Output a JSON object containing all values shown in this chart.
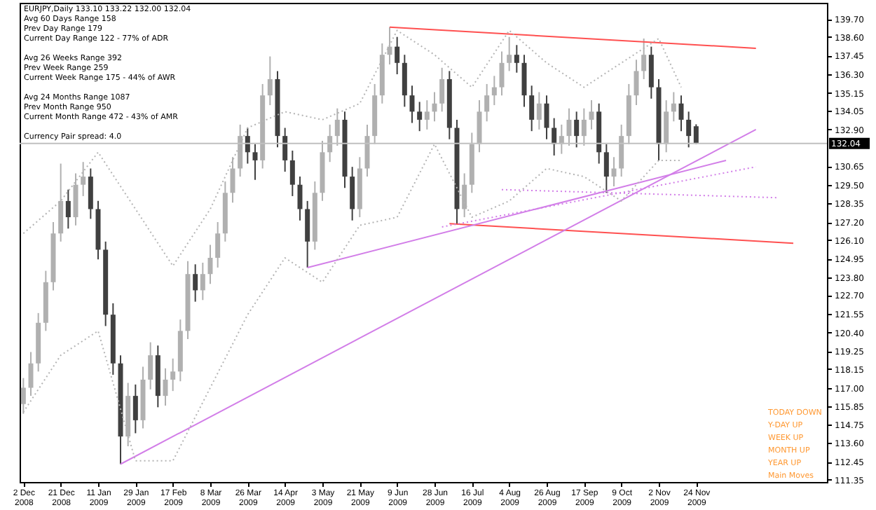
{
  "chart_data": {
    "type": "candlestick",
    "title": "EURJPY,Daily  133.10 133.22 132.00 132.04",
    "colors": [
      "#b0b0b0",
      "#b0b0b0",
      "#b0b0b0",
      "#b0b0b0",
      "#b0b0b0",
      "#b0b0b0",
      "#404040",
      "#b0b0b0",
      "#b0b0b0",
      "#404040",
      "#404040",
      "#404040",
      "#404040",
      "#404040",
      "#b0b0b0",
      "#404040",
      "#b0b0b0",
      "#b0b0b0",
      "#404040",
      "#b0b0b0",
      "#b0b0b0",
      "#b0b0b0",
      "#b0b0b0",
      "#404040",
      "#b0b0b0",
      "#b0b0b0",
      "#b0b0b0",
      "#b0b0b0",
      "#b0b0b0",
      "#b0b0b0",
      "#404040",
      "#404040",
      "#b0b0b0",
      "#b0b0b0",
      "#404040",
      "#404040",
      "#404040",
      "#404040",
      "#404040",
      "#b0b0b0",
      "#b0b0b0",
      "#b0b0b0",
      "#b0b0b0",
      "#404040",
      "#404040",
      "#b0b0b0",
      "#b0b0b0",
      "#b0b0b0",
      "#b0b0b0",
      "#b0b0b0",
      "#404040",
      "#404040",
      "#404040",
      "#404040",
      "#b0b0b0",
      "#b0b0b0",
      "#b0b0b0",
      "#404040",
      "#404040",
      "#b0b0b0",
      "#b0b0b0",
      "#b0b0b0",
      "#b0b0b0",
      "#b0b0b0",
      "#b0b0b0",
      "#b0b0b0",
      "#404040",
      "#404040",
      "#404040",
      "#b0b0b0",
      "#404040",
      "#404040",
      "#b0b0b0",
      "#b0b0b0",
      "#404040",
      "#b0b0b0",
      "#b0b0b0",
      "#404040",
      "#404040",
      "#b0b0b0",
      "#b0b0b0",
      "#b0b0b0",
      "#b0b0b0",
      "#b0b0b0",
      "#404040",
      "#404040",
      "#b0b0b0",
      "#b0b0b0",
      "#404040",
      "#404040",
      "#404040",
      null,
      null,
      null,
      null,
      null,
      null,
      null,
      null,
      null,
      null,
      null,
      null,
      null,
      null,
      null,
      null,
      null
    ],
    "categories": [
      "2 Dec 2008",
      null,
      null,
      null,
      null,
      "21 Dec 2008",
      null,
      null,
      null,
      null,
      "11 Jan 2009",
      null,
      null,
      null,
      null,
      "29 Jan 2009",
      null,
      null,
      null,
      null,
      "17 Feb 2009",
      null,
      null,
      null,
      null,
      "8 Mar 2009",
      null,
      null,
      null,
      null,
      "26 Mar 2009",
      null,
      null,
      null,
      null,
      "14 Apr 2009",
      null,
      null,
      null,
      null,
      "3 May 2009",
      null,
      null,
      null,
      null,
      "21 May 2009",
      null,
      null,
      null,
      null,
      "9 Jun 2009",
      null,
      null,
      null,
      null,
      "28 Jun 2009",
      null,
      null,
      null,
      null,
      "16 Jul 2009",
      null,
      null,
      null,
      null,
      "4 Aug 2009",
      null,
      null,
      null,
      null,
      "26 Aug 2009",
      null,
      null,
      null,
      null,
      "17 Sep 2009",
      null,
      null,
      null,
      null,
      "9 Oct 2009",
      null,
      null,
      null,
      null,
      "2 Nov 2009",
      null,
      null,
      null,
      null,
      "24 Nov 2009",
      null,
      null,
      null,
      null,
      null,
      null,
      null,
      null,
      null,
      null,
      null,
      null,
      null,
      null,
      null,
      null,
      null
    ],
    "ohlc": [
      [
        116.0,
        117.6,
        115.4,
        117.0
      ],
      [
        117.0,
        119.2,
        116.5,
        118.5
      ],
      [
        118.5,
        121.6,
        118.0,
        121.0
      ],
      [
        121.0,
        124.2,
        120.5,
        123.5
      ],
      [
        123.5,
        127.2,
        123.0,
        126.5
      ],
      [
        126.5,
        130.8,
        126.0,
        128.5
      ],
      [
        128.5,
        129.2,
        126.8,
        127.5
      ],
      [
        127.5,
        130.2,
        127.0,
        129.5
      ],
      [
        129.5,
        130.9,
        128.8,
        130.0
      ],
      [
        130.0,
        130.5,
        127.4,
        128.0
      ],
      [
        128.0,
        128.5,
        124.9,
        125.5
      ],
      [
        125.5,
        126.0,
        120.8,
        121.5
      ],
      [
        121.5,
        122.2,
        117.8,
        118.5
      ],
      [
        118.5,
        119.0,
        112.3,
        114.0
      ],
      [
        114.0,
        117.3,
        113.4,
        116.5
      ],
      [
        116.5,
        117.2,
        114.2,
        115.0
      ],
      [
        115.0,
        118.3,
        114.5,
        117.5
      ],
      [
        117.5,
        119.8,
        116.9,
        119.0
      ],
      [
        119.0,
        119.6,
        115.8,
        116.5
      ],
      [
        116.5,
        118.2,
        115.9,
        117.5
      ],
      [
        117.5,
        118.8,
        116.8,
        118.0
      ],
      [
        118.0,
        121.2,
        117.4,
        120.5
      ],
      [
        120.5,
        124.8,
        120.0,
        124.0
      ],
      [
        124.0,
        124.6,
        122.3,
        123.0
      ],
      [
        123.0,
        124.7,
        122.4,
        124.0
      ],
      [
        124.0,
        125.8,
        123.4,
        125.0
      ],
      [
        125.0,
        127.2,
        124.4,
        126.5
      ],
      [
        126.5,
        129.7,
        126.0,
        129.0
      ],
      [
        129.0,
        131.2,
        128.4,
        130.5
      ],
      [
        130.5,
        133.2,
        130.0,
        132.5
      ],
      [
        132.5,
        133.0,
        130.8,
        131.5
      ],
      [
        131.5,
        132.0,
        129.8,
        131.0
      ],
      [
        131.0,
        135.7,
        130.5,
        135.0
      ],
      [
        135.0,
        137.4,
        134.4,
        136.0
      ],
      [
        136.0,
        136.5,
        131.8,
        132.5
      ],
      [
        132.5,
        133.0,
        130.3,
        131.0
      ],
      [
        131.0,
        131.6,
        128.8,
        129.5
      ],
      [
        129.5,
        130.0,
        127.3,
        128.0
      ],
      [
        128.0,
        128.5,
        124.4,
        126.0
      ],
      [
        126.0,
        129.7,
        125.5,
        129.0
      ],
      [
        129.0,
        132.2,
        128.5,
        131.5
      ],
      [
        131.5,
        133.2,
        130.9,
        132.5
      ],
      [
        132.5,
        134.2,
        131.9,
        133.5
      ],
      [
        133.5,
        134.0,
        129.3,
        130.0
      ],
      [
        130.0,
        130.6,
        127.3,
        128.0
      ],
      [
        128.0,
        131.2,
        127.5,
        130.5
      ],
      [
        130.5,
        133.2,
        130.0,
        132.5
      ],
      [
        132.5,
        135.7,
        132.0,
        135.0
      ],
      [
        135.0,
        138.2,
        134.5,
        137.5
      ],
      [
        137.5,
        139.2,
        136.9,
        138.0
      ],
      [
        138.0,
        138.6,
        136.3,
        137.0
      ],
      [
        137.0,
        137.5,
        134.3,
        135.0
      ],
      [
        135.0,
        135.6,
        133.3,
        134.0
      ],
      [
        134.0,
        134.6,
        132.8,
        133.5
      ],
      [
        133.5,
        134.7,
        132.9,
        134.0
      ],
      [
        134.0,
        135.2,
        133.4,
        134.5
      ],
      [
        134.5,
        136.7,
        134.0,
        136.0
      ],
      [
        136.0,
        136.5,
        132.3,
        133.0
      ],
      [
        133.0,
        133.5,
        127.1,
        128.0
      ],
      [
        128.0,
        130.2,
        127.5,
        129.5
      ],
      [
        129.5,
        132.7,
        129.0,
        132.0
      ],
      [
        132.0,
        134.7,
        131.5,
        134.0
      ],
      [
        134.0,
        135.7,
        133.4,
        135.0
      ],
      [
        135.0,
        136.2,
        134.4,
        135.5
      ],
      [
        135.5,
        137.7,
        135.0,
        137.0
      ],
      [
        137.0,
        138.6,
        136.5,
        137.5
      ],
      [
        137.5,
        138.1,
        136.4,
        137.0
      ],
      [
        137.0,
        137.5,
        134.3,
        135.0
      ],
      [
        135.0,
        135.6,
        132.8,
        133.5
      ],
      [
        133.5,
        135.2,
        132.9,
        134.5
      ],
      [
        134.5,
        135.0,
        132.3,
        133.0
      ],
      [
        133.0,
        133.6,
        131.3,
        132.0
      ],
      [
        132.0,
        133.2,
        131.4,
        132.5
      ],
      [
        132.5,
        134.2,
        131.9,
        133.5
      ],
      [
        133.5,
        134.0,
        131.8,
        132.5
      ],
      [
        132.5,
        134.2,
        131.9,
        133.5
      ],
      [
        133.5,
        134.7,
        132.9,
        134.0
      ],
      [
        134.0,
        134.5,
        130.8,
        131.5
      ],
      [
        131.5,
        132.0,
        129.0,
        130.0
      ],
      [
        130.0,
        131.2,
        129.4,
        130.5
      ],
      [
        130.5,
        133.2,
        130.0,
        132.5
      ],
      [
        132.5,
        135.7,
        132.0,
        135.0
      ],
      [
        135.0,
        137.2,
        134.4,
        136.5
      ],
      [
        136.5,
        138.5,
        136.0,
        137.5
      ],
      [
        137.5,
        138.0,
        134.8,
        135.5
      ],
      [
        135.5,
        136.0,
        131.0,
        132.0
      ],
      [
        132.0,
        134.7,
        131.5,
        134.0
      ],
      [
        134.0,
        135.2,
        133.4,
        134.5
      ],
      [
        134.5,
        135.0,
        132.8,
        133.5
      ],
      [
        133.5,
        134.0,
        131.8,
        132.5
      ],
      [
        133.1,
        133.22,
        132.0,
        132.04
      ],
      null,
      null,
      null,
      null,
      null,
      null,
      null,
      null,
      null,
      null,
      null,
      null,
      null,
      null,
      null,
      null,
      null
    ],
    "series": [
      {
        "type": "line",
        "color": "#ff5050",
        "line_style": "solid",
        "values": [
          null,
          null,
          null,
          null,
          null,
          null,
          null,
          null,
          null,
          null,
          null,
          null,
          null,
          null,
          null,
          null,
          null,
          null,
          null,
          null,
          null,
          null,
          null,
          null,
          null,
          null,
          null,
          null,
          null,
          null,
          null,
          null,
          null,
          null,
          null,
          null,
          null,
          null,
          null,
          null,
          null,
          null,
          null,
          null,
          null,
          null,
          null,
          null,
          null,
          139.2,
          null,
          null,
          null,
          null,
          null,
          null,
          null,
          null,
          null,
          null,
          null,
          null,
          null,
          null,
          null,
          null,
          null,
          null,
          null,
          null,
          null,
          null,
          null,
          null,
          null,
          null,
          null,
          null,
          null,
          null,
          null,
          null,
          null,
          null,
          null,
          null,
          null,
          null,
          null,
          null,
          null,
          null,
          null,
          null,
          null,
          null,
          null,
          null,
          137.9,
          null,
          null,
          null,
          null,
          null,
          null,
          null,
          null,
          null
        ]
      },
      {
        "type": "line",
        "color": "#ff5050",
        "line_style": "solid",
        "values": [
          null,
          null,
          null,
          null,
          null,
          null,
          null,
          null,
          null,
          null,
          null,
          null,
          null,
          null,
          null,
          null,
          null,
          null,
          null,
          null,
          null,
          null,
          null,
          null,
          null,
          null,
          null,
          null,
          null,
          null,
          null,
          null,
          null,
          null,
          null,
          null,
          null,
          null,
          null,
          null,
          null,
          null,
          null,
          null,
          null,
          null,
          null,
          null,
          null,
          null,
          null,
          null,
          null,
          null,
          null,
          null,
          null,
          127.1,
          null,
          null,
          null,
          null,
          null,
          null,
          null,
          null,
          null,
          null,
          null,
          null,
          null,
          null,
          null,
          null,
          null,
          null,
          null,
          null,
          null,
          null,
          null,
          null,
          null,
          null,
          null,
          null,
          null,
          null,
          null,
          null,
          null,
          null,
          null,
          null,
          null,
          null,
          null,
          null,
          null,
          null,
          null,
          null,
          null,
          125.9,
          null,
          null,
          null,
          null
        ]
      },
      {
        "type": "line",
        "color": "#d27ee8",
        "line_style": "solid",
        "values": [
          null,
          null,
          null,
          null,
          null,
          null,
          null,
          null,
          null,
          null,
          null,
          null,
          null,
          112.3,
          null,
          null,
          null,
          null,
          null,
          null,
          null,
          null,
          null,
          null,
          null,
          null,
          null,
          null,
          null,
          null,
          null,
          null,
          null,
          null,
          null,
          null,
          null,
          null,
          null,
          null,
          null,
          null,
          null,
          null,
          null,
          null,
          null,
          null,
          null,
          null,
          null,
          null,
          null,
          null,
          null,
          null,
          null,
          null,
          null,
          null,
          null,
          null,
          null,
          null,
          null,
          null,
          null,
          null,
          null,
          null,
          null,
          null,
          null,
          null,
          null,
          null,
          null,
          null,
          null,
          null,
          null,
          null,
          null,
          null,
          null,
          null,
          null,
          null,
          null,
          null,
          null,
          null,
          null,
          null,
          null,
          null,
          null,
          null,
          132.9,
          null,
          null,
          null,
          null,
          null,
          null,
          null,
          null,
          null
        ]
      },
      {
        "type": "line",
        "color": "#d27ee8",
        "line_style": "solid",
        "values": [
          null,
          null,
          null,
          null,
          null,
          null,
          null,
          null,
          null,
          null,
          null,
          null,
          null,
          null,
          null,
          null,
          null,
          null,
          null,
          null,
          null,
          null,
          null,
          null,
          null,
          null,
          null,
          null,
          null,
          null,
          null,
          null,
          null,
          null,
          null,
          null,
          null,
          null,
          124.4,
          null,
          null,
          null,
          null,
          null,
          null,
          null,
          null,
          null,
          null,
          null,
          null,
          null,
          null,
          null,
          null,
          null,
          null,
          null,
          null,
          null,
          null,
          null,
          null,
          null,
          null,
          null,
          null,
          null,
          null,
          null,
          null,
          null,
          null,
          null,
          null,
          null,
          null,
          null,
          null,
          null,
          null,
          null,
          null,
          null,
          null,
          null,
          null,
          null,
          null,
          null,
          null,
          null,
          null,
          null,
          131.0,
          null,
          null,
          null,
          null,
          null,
          null,
          null,
          null,
          null,
          null,
          null,
          null,
          null
        ]
      },
      {
        "type": "line",
        "color": "#d27ee8",
        "line_style": "dotted",
        "values": [
          null,
          null,
          null,
          null,
          null,
          null,
          null,
          null,
          null,
          null,
          null,
          null,
          null,
          null,
          null,
          null,
          null,
          null,
          null,
          null,
          null,
          null,
          null,
          null,
          null,
          null,
          null,
          null,
          null,
          null,
          null,
          null,
          null,
          null,
          null,
          null,
          null,
          null,
          null,
          null,
          null,
          null,
          null,
          null,
          null,
          null,
          null,
          null,
          null,
          null,
          null,
          null,
          null,
          null,
          null,
          null,
          126.9,
          null,
          null,
          null,
          null,
          null,
          null,
          null,
          null,
          null,
          null,
          null,
          null,
          null,
          null,
          null,
          null,
          null,
          null,
          null,
          null,
          null,
          null,
          null,
          null,
          null,
          null,
          null,
          null,
          null,
          null,
          null,
          null,
          null,
          null,
          null,
          null,
          null,
          null,
          null,
          null,
          null,
          130.6,
          null,
          null,
          null,
          null,
          null,
          null,
          null,
          null,
          null
        ]
      },
      {
        "type": "line",
        "color": "#d27ee8",
        "line_style": "dotted",
        "values": [
          null,
          null,
          null,
          null,
          null,
          null,
          null,
          null,
          null,
          null,
          null,
          null,
          null,
          null,
          null,
          null,
          null,
          null,
          null,
          null,
          null,
          null,
          null,
          null,
          null,
          null,
          null,
          null,
          null,
          null,
          null,
          null,
          null,
          null,
          null,
          null,
          null,
          null,
          null,
          null,
          null,
          null,
          null,
          null,
          null,
          null,
          null,
          null,
          null,
          null,
          null,
          null,
          null,
          null,
          null,
          null,
          null,
          null,
          null,
          null,
          null,
          null,
          null,
          null,
          129.2,
          null,
          null,
          null,
          null,
          null,
          null,
          null,
          null,
          null,
          null,
          null,
          null,
          null,
          null,
          null,
          null,
          null,
          null,
          null,
          null,
          null,
          null,
          null,
          null,
          null,
          null,
          null,
          null,
          null,
          null,
          null,
          null,
          null,
          null,
          null,
          null,
          128.7,
          null,
          null,
          null,
          null,
          null,
          null
        ]
      },
      {
        "type": "line",
        "color": "#b4b4b4",
        "line_style": "dotted",
        "values": [
          126.5,
          null,
          null,
          null,
          null,
          128.5,
          null,
          null,
          null,
          null,
          131.5,
          null,
          null,
          null,
          null,
          128.0,
          null,
          null,
          null,
          null,
          124.5,
          null,
          null,
          null,
          null,
          128.0,
          null,
          null,
          null,
          null,
          133.0,
          null,
          null,
          null,
          null,
          134.0,
          null,
          null,
          null,
          null,
          133.5,
          null,
          null,
          null,
          null,
          134.5,
          null,
          null,
          null,
          null,
          139.0,
          null,
          null,
          null,
          null,
          137.5,
          null,
          null,
          null,
          null,
          135.5,
          null,
          null,
          null,
          null,
          139.0,
          null,
          null,
          null,
          null,
          137.0,
          null,
          null,
          null,
          null,
          135.5,
          null,
          null,
          null,
          null,
          137.0,
          null,
          null,
          null,
          null,
          138.5,
          null,
          null,
          135.5,
          null,
          null,
          null,
          null,
          null,
          null,
          null,
          null,
          null,
          null,
          null,
          null,
          null,
          null,
          null,
          null,
          null,
          null,
          null
        ]
      },
      {
        "type": "line",
        "color": "#b4b4b4",
        "line_style": "dotted",
        "values": [
          115.5,
          null,
          null,
          null,
          null,
          119.0,
          null,
          null,
          null,
          null,
          120.5,
          null,
          null,
          null,
          null,
          112.5,
          null,
          null,
          null,
          null,
          112.5,
          null,
          null,
          null,
          null,
          117.0,
          null,
          null,
          null,
          null,
          121.5,
          null,
          null,
          null,
          null,
          125.0,
          null,
          null,
          null,
          null,
          123.5,
          null,
          null,
          null,
          null,
          127.0,
          null,
          null,
          null,
          null,
          127.5,
          null,
          null,
          null,
          null,
          132.0,
          null,
          null,
          null,
          null,
          127.5,
          null,
          null,
          null,
          null,
          128.5,
          null,
          null,
          null,
          null,
          130.5,
          null,
          null,
          null,
          null,
          130.0,
          null,
          null,
          null,
          null,
          128.5,
          null,
          null,
          null,
          null,
          131.0,
          null,
          null,
          131.0,
          null,
          null,
          null,
          null,
          null,
          null,
          null,
          null,
          null,
          null,
          null,
          null,
          null,
          null,
          null,
          null,
          null,
          null,
          null
        ]
      }
    ],
    "ylim": [
      111.2,
      140.7
    ],
    "yticks": [
      {
        "value": 139.7,
        "label": "139.70"
      },
      {
        "value": 138.6,
        "label": "138.60"
      },
      {
        "value": 137.45,
        "label": "137.45"
      },
      {
        "value": 136.3,
        "label": "136.30"
      },
      {
        "value": 135.15,
        "label": "135.15"
      },
      {
        "value": 134.05,
        "label": "134.05"
      },
      {
        "value": 132.9,
        "label": "132.90"
      },
      {
        "value": 130.65,
        "label": "130.65"
      },
      {
        "value": 129.5,
        "label": "129.50"
      },
      {
        "value": 128.35,
        "label": "128.35"
      },
      {
        "value": 127.2,
        "label": "127.20"
      },
      {
        "value": 126.1,
        "label": "126.10"
      },
      {
        "value": 124.95,
        "label": "124.95"
      },
      {
        "value": 123.8,
        "label": "123.80"
      },
      {
        "value": 122.7,
        "label": "122.70"
      },
      {
        "value": 121.55,
        "label": "121.55"
      },
      {
        "value": 120.4,
        "label": "120.40"
      },
      {
        "value": 119.25,
        "label": "119.25"
      },
      {
        "value": 118.15,
        "label": "118.15"
      },
      {
        "value": 117.0,
        "label": "117.00"
      },
      {
        "value": 115.85,
        "label": "115.85"
      },
      {
        "value": 114.75,
        "label": "114.75"
      },
      {
        "value": 113.6,
        "label": "113.60"
      },
      {
        "value": 112.45,
        "label": "112.45"
      },
      {
        "value": 111.35,
        "label": "111.35"
      }
    ],
    "ref_lines": [
      {
        "axis": "y",
        "value": 132.04,
        "label": "132.04",
        "color": "#c0c0c0"
      }
    ],
    "grid": false,
    "annotations": [
      "Avg 60 Days Range 158",
      "Prev Day Range 179",
      "Current Day Range 122 - 77% of ADR",
      "Avg 26 Weeks Range 392",
      "Prev Week Range 259",
      "Current Week Range 175 - 44% of AWR",
      "Avg 24 Months Range 1087",
      "Prev Month Range 950",
      "Current Month Range 472 - 43% of AMR",
      "Currency Pair spread: 4.0",
      "TODAY  DOWN",
      "Y-DAY  UP",
      "WEEK  UP",
      "MONTH  UP",
      "YEAR  UP",
      "Main Moves"
    ]
  }
}
